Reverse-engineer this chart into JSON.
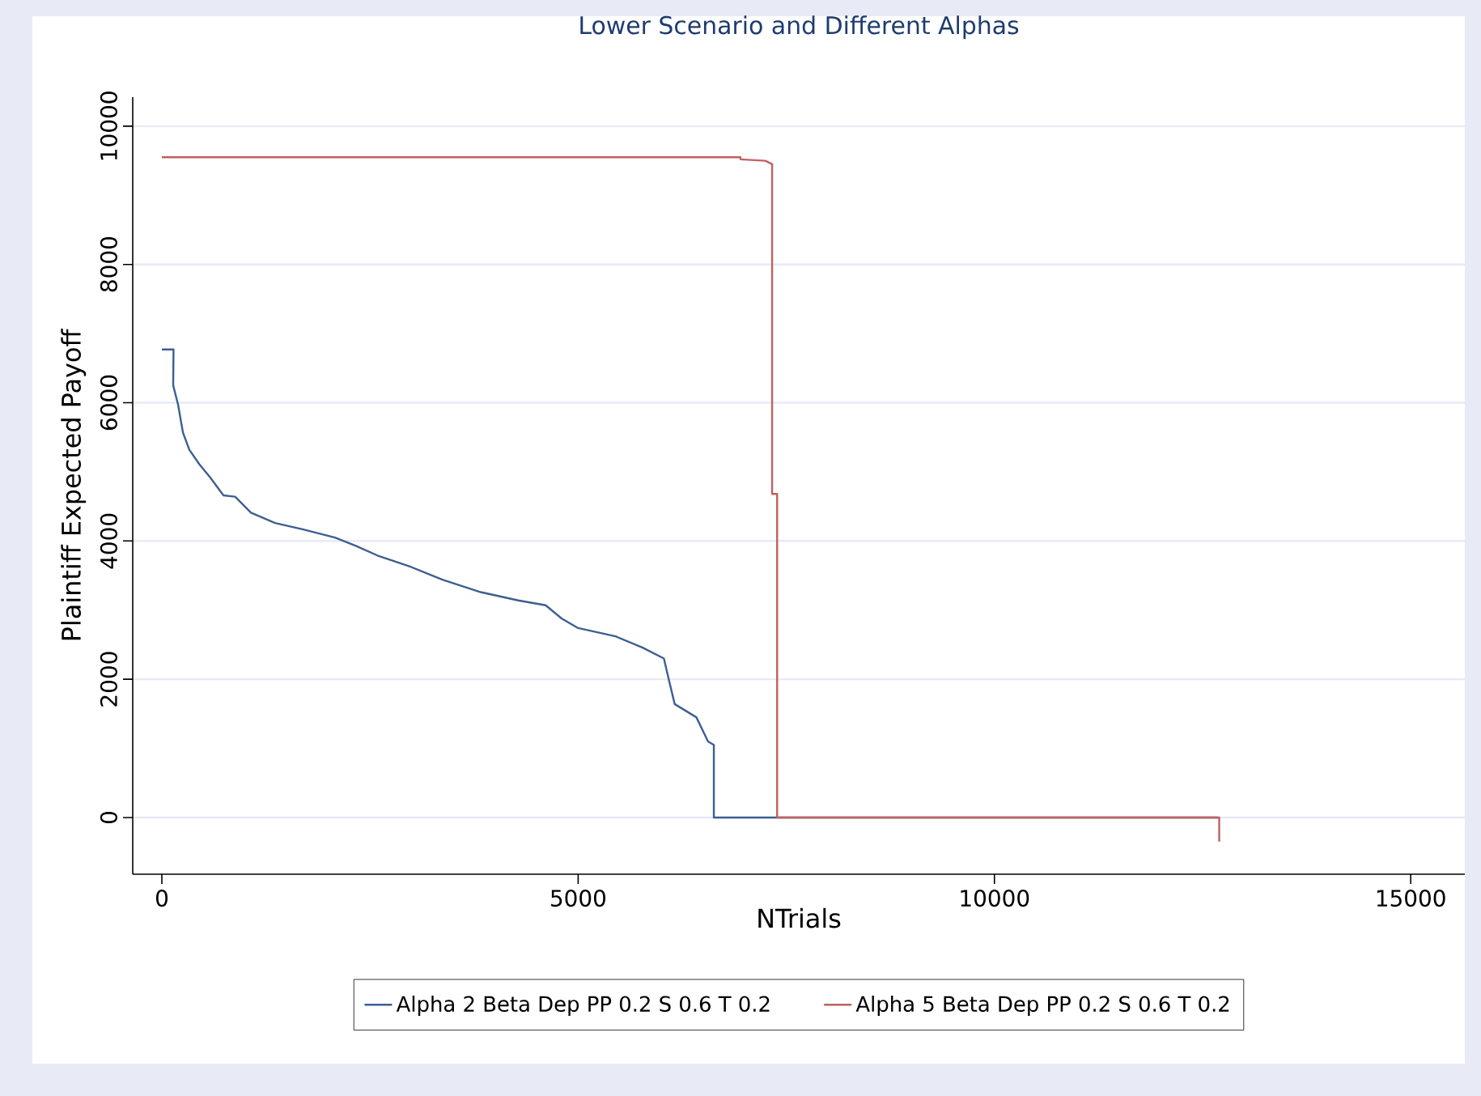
{
  "chart_data": {
    "type": "line",
    "title": "Lower Scenario and Different Alphas",
    "xlabel": "NTrials",
    "ylabel": "Plaintiff Expected Payoff",
    "xlim": [
      -350,
      15650
    ],
    "ylim": [
      -820,
      10420
    ],
    "xticks": [
      0,
      5000,
      10000,
      15000
    ],
    "yticks": [
      0,
      2000,
      4000,
      6000,
      8000,
      10000
    ],
    "grid": "y",
    "legend": "bottom",
    "series": [
      {
        "name": "Alpha 2 Beta Dep PP 0.2 S 0.6 T 0.2",
        "color": "#3d5f91",
        "x": [
          0,
          140,
          136,
          195,
          253,
          330,
          450,
          580,
          740,
          880,
          1070,
          1360,
          1690,
          2080,
          2330,
          2590,
          2980,
          3370,
          3830,
          4280,
          4610,
          4800,
          5000,
          5450,
          5770,
          6030,
          6090,
          6160,
          6420,
          6560,
          6630,
          6630,
          12680
        ],
        "values": [
          6770,
          6770,
          6250,
          5970,
          5570,
          5320,
          5110,
          4920,
          4660,
          4640,
          4410,
          4260,
          4170,
          4050,
          3930,
          3790,
          3630,
          3440,
          3260,
          3140,
          3070,
          2880,
          2740,
          2620,
          2460,
          2300,
          1990,
          1640,
          1450,
          1100,
          1050,
          0,
          0
        ]
      },
      {
        "name": "Alpha 5 Beta Dep PP 0.2 S 0.6 T 0.2",
        "color": "#c06060",
        "x": [
          0,
          6950,
          6950,
          7250,
          7330,
          7330,
          7390,
          7390,
          12700,
          12700
        ],
        "values": [
          9550,
          9550,
          9520,
          9500,
          9450,
          4680,
          4680,
          0,
          0,
          -350
        ]
      }
    ]
  }
}
